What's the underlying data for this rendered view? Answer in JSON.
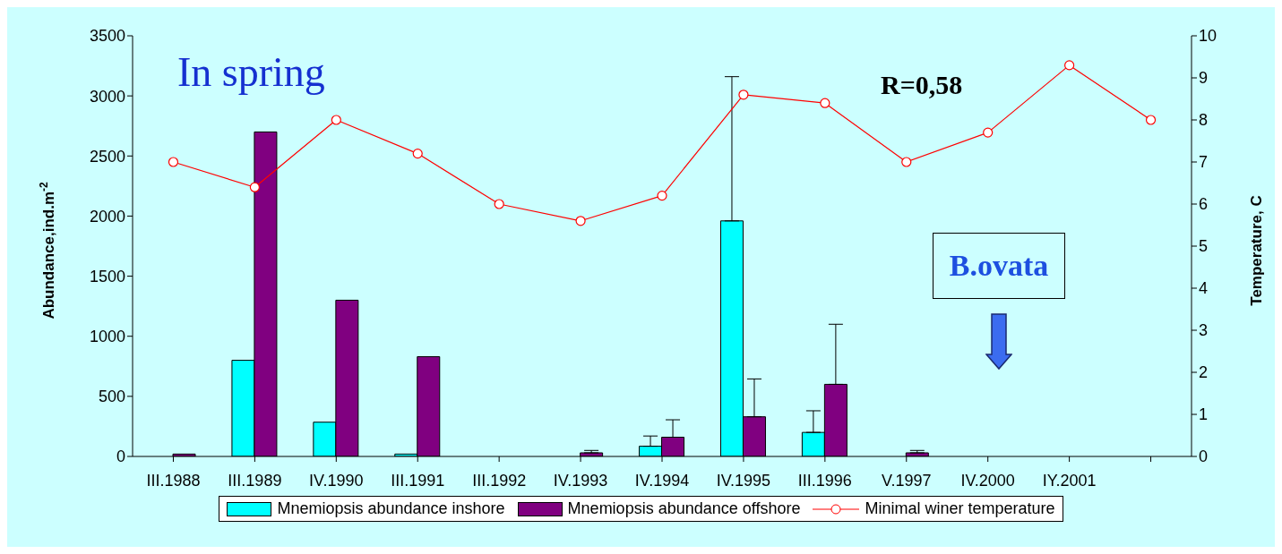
{
  "chart_data": {
    "type": "bar",
    "categories": [
      "III.1988",
      "III.1989",
      "IV.1990",
      "III.1991",
      "III.1992",
      "IV.1993",
      "IV.1994",
      "IV.1995",
      "III.1996",
      "V.1997",
      "IV.2000",
      "IY.2001",
      null
    ],
    "series": [
      {
        "name": "Mnemiopsis abundance inshore",
        "color": "#00ffff",
        "values": [
          null,
          800,
          285,
          20,
          0,
          null,
          85,
          1960,
          200,
          0,
          0,
          0,
          null
        ],
        "errors": [
          null,
          null,
          null,
          null,
          null,
          null,
          [
            85,
            170
          ],
          [
            1960,
            3160
          ],
          [
            200,
            380
          ],
          null,
          null,
          null,
          null
        ]
      },
      {
        "name": "Mnemiopsis abundance offshore",
        "color": "#800080",
        "values": [
          20,
          2700,
          1300,
          830,
          0,
          30,
          160,
          330,
          600,
          30,
          null,
          null,
          null
        ],
        "errors": [
          null,
          null,
          null,
          null,
          null,
          [
            30,
            50
          ],
          [
            160,
            305
          ],
          [
            330,
            645
          ],
          [
            600,
            1100
          ],
          [
            30,
            50
          ],
          null,
          null,
          null
        ]
      },
      {
        "name": "Minimal winer temperature",
        "type": "line",
        "axis": "y2",
        "color": "#ff0000",
        "marker": "circle",
        "values": [
          7.0,
          6.4,
          8.0,
          7.2,
          6.0,
          5.6,
          6.2,
          8.6,
          8.4,
          7.0,
          7.7,
          9.3,
          8.0
        ]
      }
    ],
    "ylabel": "Abundance,ind.m$^{-2}$",
    "y2label": "Temperature, C",
    "ylim": [
      0,
      3500
    ],
    "yticks": [
      0,
      500,
      1000,
      1500,
      2000,
      2500,
      3000,
      3500
    ],
    "y2lim": [
      0,
      10
    ],
    "y2ticks": [
      0,
      1,
      2,
      3,
      4,
      5,
      6,
      7,
      8,
      9,
      10
    ],
    "annotations": [
      "In spring",
      "R=0,58",
      "B.ovata"
    ],
    "grid": false,
    "legend": "bottom"
  }
}
